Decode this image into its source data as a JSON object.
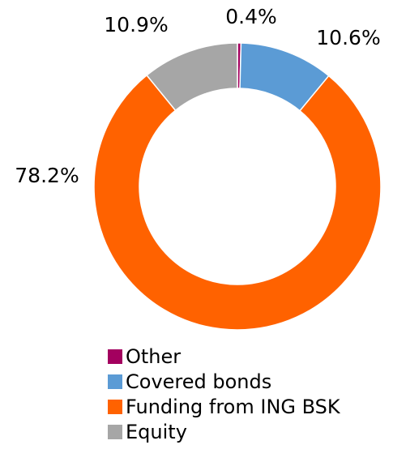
{
  "chart_data": {
    "type": "donut",
    "categories": [
      "Other",
      "Covered bonds",
      "Funding from ING BSK",
      "Equity"
    ],
    "values": [
      0.4,
      10.6,
      78.2,
      10.9
    ],
    "value_labels": [
      "0.4%",
      "10.6%",
      "78.2%",
      "10.9%"
    ],
    "colors": [
      "#a3005f",
      "#5b9bd5",
      "#ff6200",
      "#a6a6a6"
    ],
    "legend": "bottom"
  }
}
